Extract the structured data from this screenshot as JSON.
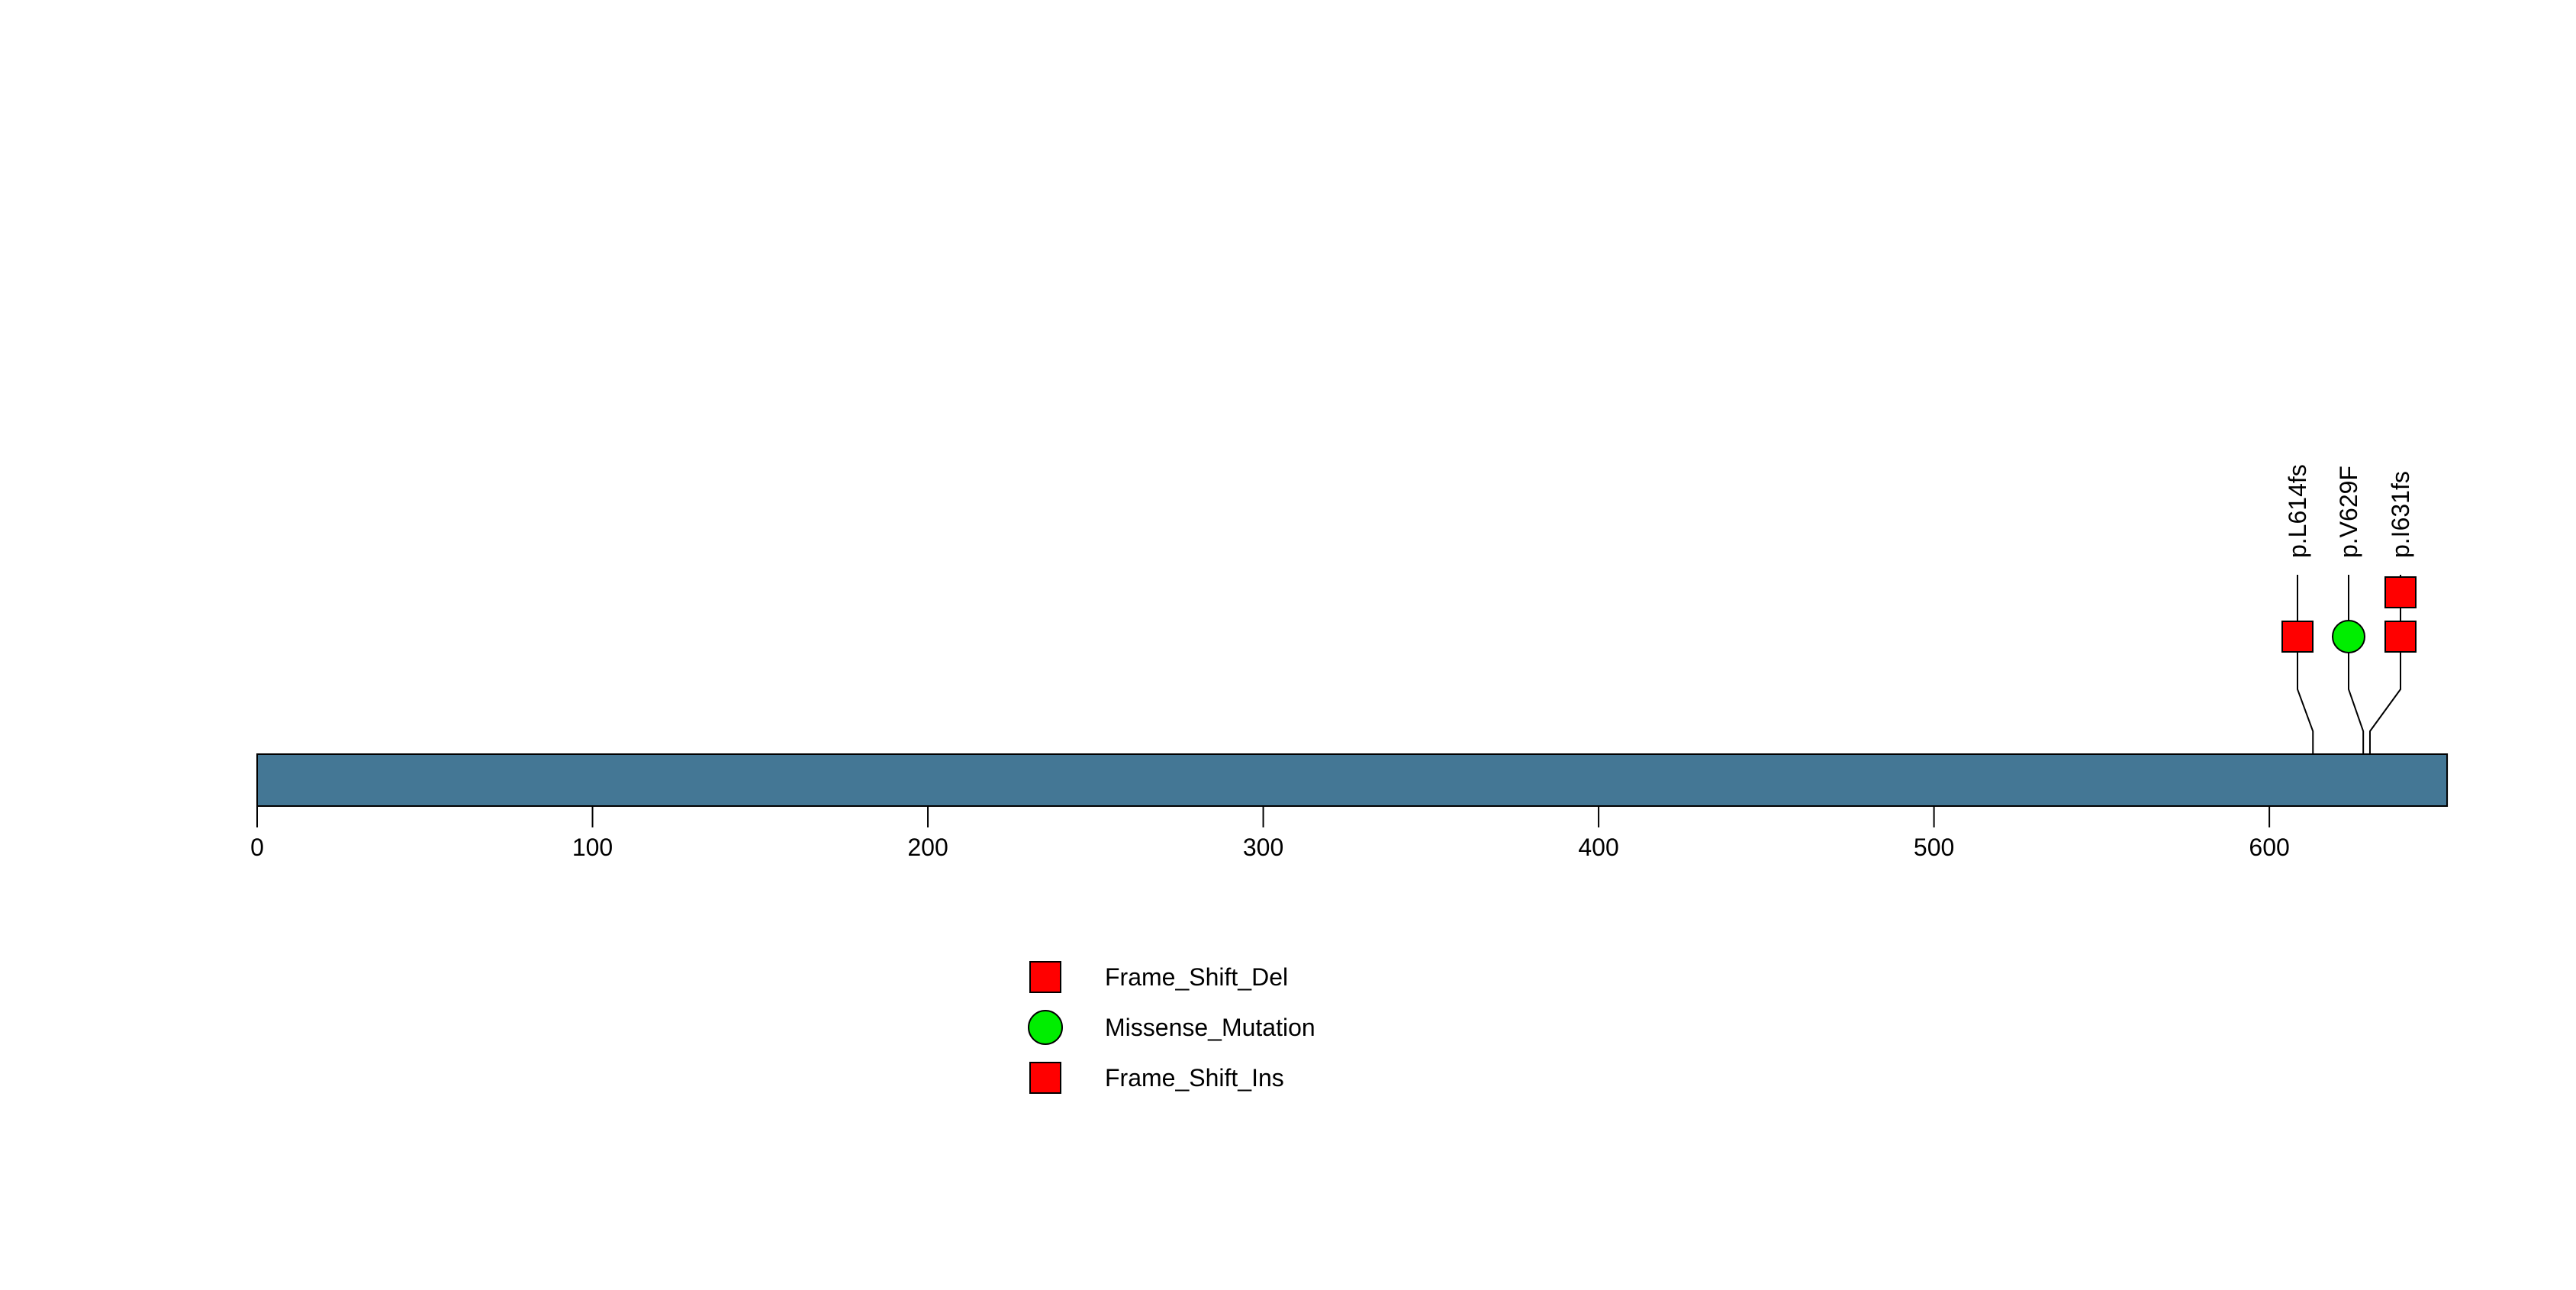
{
  "chart_data": {
    "type": "lollipop",
    "title": "",
    "xlabel": "",
    "ylabel": "",
    "xlim": [
      0,
      653
    ],
    "protein_length_aa": 653,
    "x_ticks": [
      "0",
      "100",
      "200",
      "300",
      "400",
      "500",
      "600"
    ],
    "x_tick_values": [
      0,
      100,
      200,
      300,
      400,
      500,
      600
    ],
    "grid": false,
    "backbone_color": "#447795",
    "outline_color": "#000000",
    "background_color": "#ffffff",
    "mutations": [
      {
        "label": "p.L614fs",
        "position": 614,
        "type": "Frame_Shift_Del",
        "shape": "square",
        "color": "#ff0000",
        "count": 1
      },
      {
        "label": "p.V629F",
        "position": 629,
        "type": "Missense_Mutation",
        "shape": "circle",
        "color": "#00ee00",
        "count": 1
      },
      {
        "label": "p.I631fs",
        "position": 631,
        "type": "Frame_Shift_Ins",
        "shape": "square",
        "color": "#ff0000",
        "count": 2
      }
    ],
    "legend": {
      "position": "bottom-center",
      "entries": [
        {
          "label": "Frame_Shift_Del",
          "shape": "square",
          "color": "#ff0000"
        },
        {
          "label": "Missense_Mutation",
          "shape": "circle",
          "color": "#00ee00"
        },
        {
          "label": "Frame_Shift_Ins",
          "shape": "square",
          "color": "#ff0000"
        }
      ]
    }
  }
}
